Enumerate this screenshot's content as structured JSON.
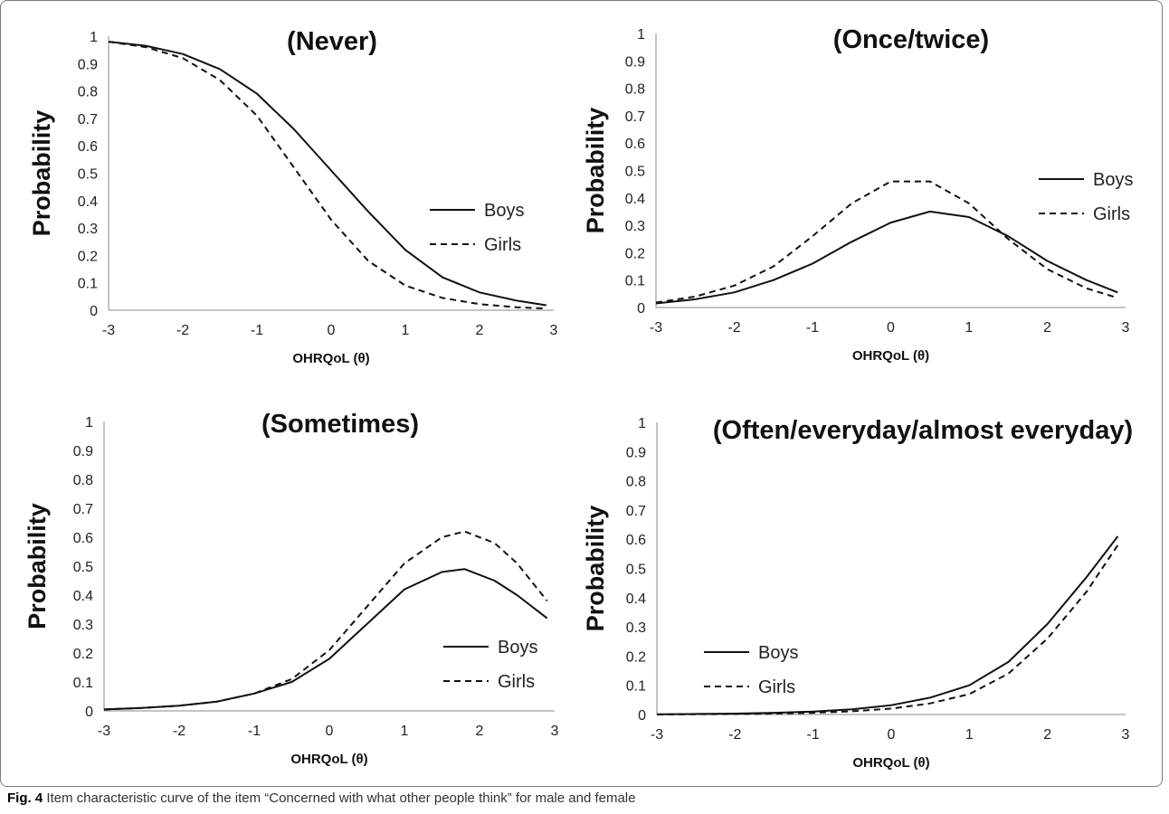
{
  "caption": {
    "label": "Fig. 4",
    "text": "Item characteristic curve of the item “Concerned with what other people think” for male and female"
  },
  "chart_data": [
    {
      "type": "line",
      "title": "(Never)",
      "xlabel": "OHRQoL (θ)",
      "ylabel": "Probability",
      "xlim": [
        -3,
        3
      ],
      "ylim": [
        0,
        1
      ],
      "xticks": [
        "-3",
        "-2",
        "-1",
        "0",
        "1",
        "2",
        "3"
      ],
      "yticks": [
        "0",
        "0.1",
        "0.2",
        "0.3",
        "0.4",
        "0.5",
        "0.6",
        "0.7",
        "0.8",
        "0.9",
        "1"
      ],
      "legend_position": "middle-right",
      "grid": false,
      "x": [
        -3.0,
        -2.5,
        -2.0,
        -1.5,
        -1.0,
        -0.5,
        0.0,
        0.5,
        1.0,
        1.5,
        2.0,
        2.5,
        2.9
      ],
      "series": [
        {
          "name": "Boys",
          "style": "solid",
          "values": [
            0.98,
            0.965,
            0.935,
            0.88,
            0.79,
            0.66,
            0.51,
            0.36,
            0.22,
            0.12,
            0.065,
            0.035,
            0.018
          ]
        },
        {
          "name": "Girls",
          "style": "dashed",
          "values": [
            0.98,
            0.96,
            0.92,
            0.84,
            0.71,
            0.52,
            0.33,
            0.18,
            0.09,
            0.045,
            0.022,
            0.011,
            0.006
          ]
        }
      ]
    },
    {
      "type": "line",
      "title": "(Once/twice)",
      "xlabel": "OHRQoL (θ)",
      "ylabel": "Probability",
      "xlim": [
        -3,
        3
      ],
      "ylim": [
        0,
        1
      ],
      "xticks": [
        "-3",
        "-2",
        "-1",
        "0",
        "1",
        "2",
        "3"
      ],
      "yticks": [
        "0",
        "0.1",
        "0.2",
        "0.3",
        "0.4",
        "0.5",
        "0.6",
        "0.7",
        "0.8",
        "0.9",
        "1"
      ],
      "legend_position": "middle-right",
      "grid": false,
      "x": [
        -3.0,
        -2.5,
        -2.0,
        -1.5,
        -1.0,
        -0.5,
        0.0,
        0.5,
        1.0,
        1.5,
        2.0,
        2.5,
        2.9
      ],
      "series": [
        {
          "name": "Boys",
          "style": "solid",
          "values": [
            0.015,
            0.03,
            0.055,
            0.1,
            0.16,
            0.24,
            0.31,
            0.35,
            0.33,
            0.26,
            0.17,
            0.1,
            0.055
          ]
        },
        {
          "name": "Girls",
          "style": "dashed",
          "values": [
            0.018,
            0.04,
            0.08,
            0.15,
            0.26,
            0.38,
            0.46,
            0.46,
            0.38,
            0.25,
            0.14,
            0.07,
            0.035
          ]
        }
      ]
    },
    {
      "type": "line",
      "title": "(Sometimes)",
      "xlabel": "OHRQoL (θ)",
      "ylabel": "Probability",
      "xlim": [
        -3,
        3
      ],
      "ylim": [
        0,
        1
      ],
      "xticks": [
        "-3",
        "-2",
        "-1",
        "0",
        "1",
        "2",
        "3"
      ],
      "yticks": [
        "0",
        "0.1",
        "0.2",
        "0.3",
        "0.4",
        "0.5",
        "0.6",
        "0.7",
        "0.8",
        "0.9",
        "1"
      ],
      "legend_position": "bottom-right",
      "grid": false,
      "x": [
        -3.0,
        -2.5,
        -2.0,
        -1.5,
        -1.0,
        -0.5,
        0.0,
        0.5,
        1.0,
        1.5,
        1.8,
        2.2,
        2.5,
        2.9
      ],
      "series": [
        {
          "name": "Boys",
          "style": "solid",
          "values": [
            0.005,
            0.01,
            0.018,
            0.032,
            0.06,
            0.1,
            0.18,
            0.3,
            0.42,
            0.48,
            0.49,
            0.45,
            0.4,
            0.32
          ]
        },
        {
          "name": "Girls",
          "style": "dashed",
          "values": [
            0.005,
            0.01,
            0.018,
            0.032,
            0.06,
            0.11,
            0.21,
            0.36,
            0.51,
            0.6,
            0.62,
            0.58,
            0.51,
            0.38
          ]
        }
      ]
    },
    {
      "type": "line",
      "title": "(Often/everyday/almost everyday)",
      "xlabel": "OHRQoL (θ)",
      "ylabel": "Probability",
      "xlim": [
        -3,
        3
      ],
      "ylim": [
        0,
        1
      ],
      "xticks": [
        "-3",
        "-2",
        "-1",
        "0",
        "1",
        "2",
        "3"
      ],
      "yticks": [
        "0",
        "0.1",
        "0.2",
        "0.3",
        "0.4",
        "0.5",
        "0.6",
        "0.7",
        "0.8",
        "0.9",
        "1"
      ],
      "legend_position": "bottom-left",
      "grid": false,
      "x": [
        -3.0,
        -2.5,
        -2.0,
        -1.5,
        -1.0,
        -0.5,
        0.0,
        0.5,
        1.0,
        1.5,
        2.0,
        2.5,
        2.9
      ],
      "series": [
        {
          "name": "Boys",
          "style": "solid",
          "values": [
            0.001,
            0.002,
            0.003,
            0.006,
            0.01,
            0.018,
            0.032,
            0.058,
            0.1,
            0.18,
            0.31,
            0.47,
            0.61
          ]
        },
        {
          "name": "Girls",
          "style": "dashed",
          "values": [
            0.0,
            0.001,
            0.002,
            0.003,
            0.006,
            0.011,
            0.02,
            0.038,
            0.07,
            0.14,
            0.26,
            0.42,
            0.58
          ]
        }
      ]
    }
  ]
}
